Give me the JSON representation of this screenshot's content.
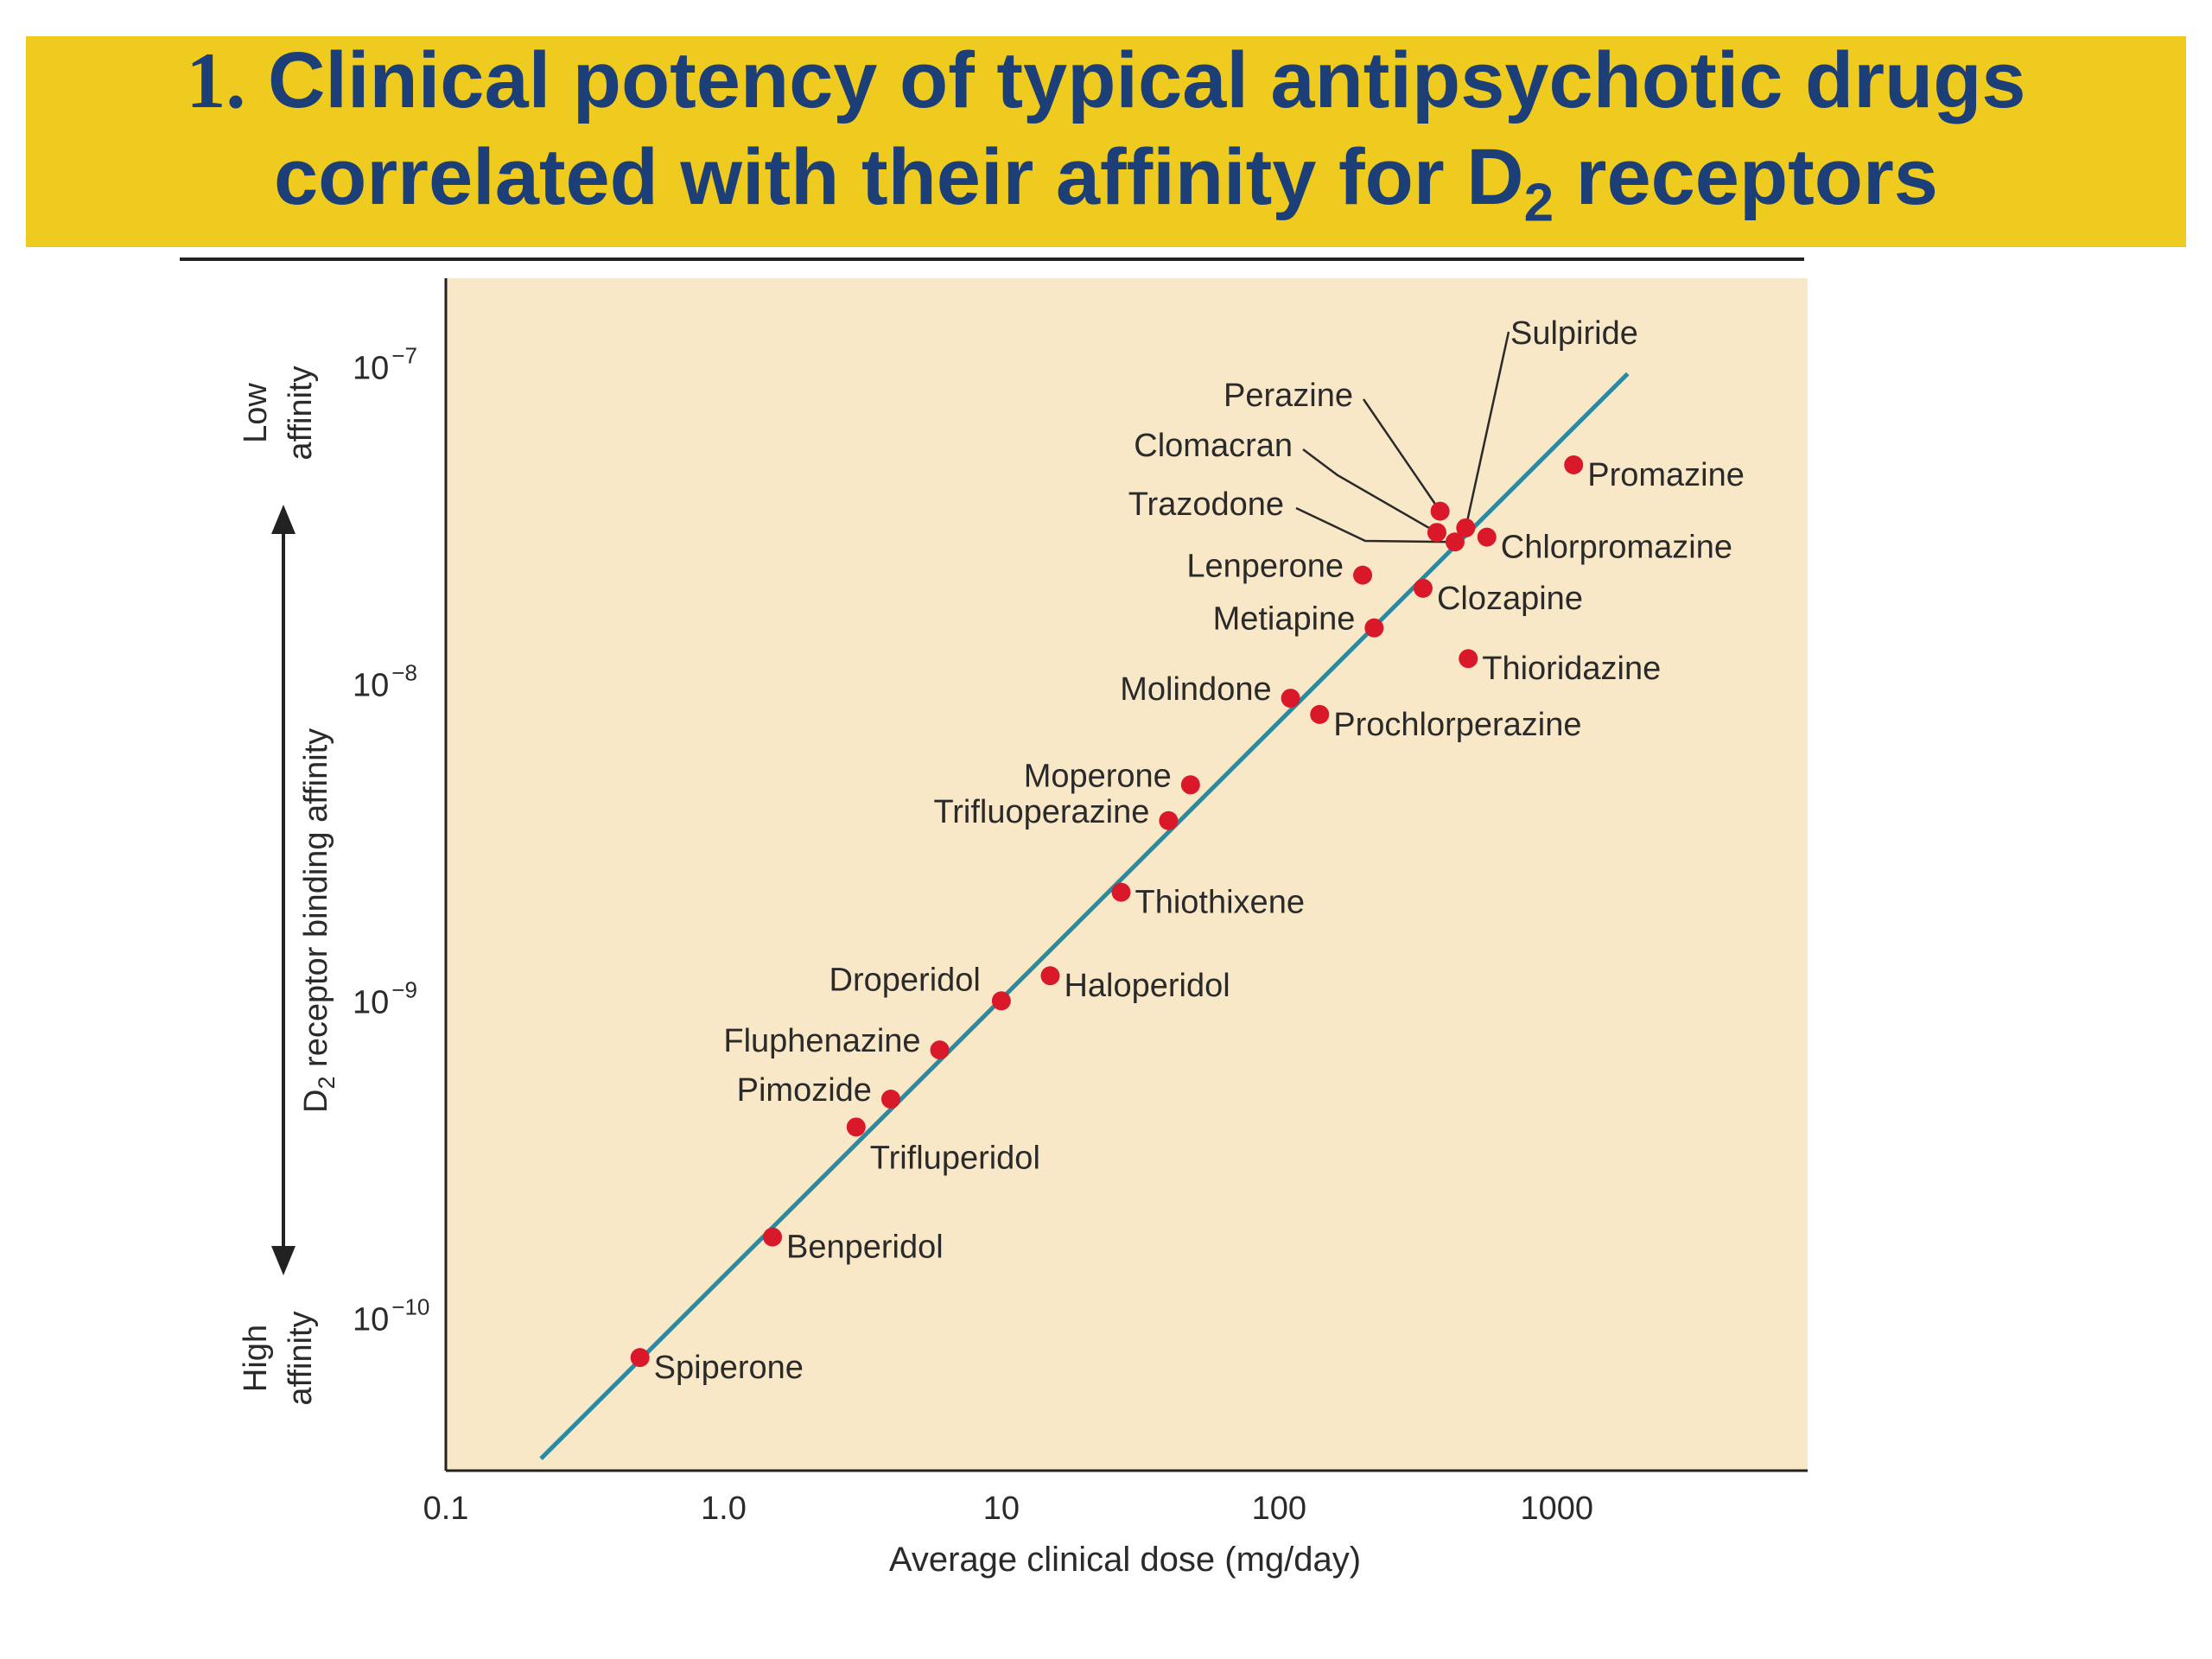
{
  "title": {
    "line1_number": "1.",
    "line1": "Clinical potency of typical antipsychotic drugs",
    "line2_prefix": "correlated with their affinity for D",
    "line2_sub": "2",
    "line2_suffix": " receptors"
  },
  "colors": {
    "banner": "#f0cb1f",
    "title_text": "#1c3f78",
    "plot_bg": "#f9e8c8",
    "trend_line": "#2a8aa0",
    "points": "#d9192a"
  },
  "chart_data": {
    "type": "scatter",
    "x_scale": "log",
    "y_scale": "log",
    "xlabel": "Average clinical dose (mg/day)",
    "ylabel_main": "D",
    "ylabel_sub": "2",
    "ylabel_rest": " receptor binding affinity",
    "y_top_label": [
      "Low",
      "affinity"
    ],
    "y_bottom_label": [
      "High",
      "affinity"
    ],
    "xlim": [
      0.1,
      8000
    ],
    "ylim": [
      3.3e-11,
      1.9e-07
    ],
    "x_ticks": [
      {
        "value": 0.1,
        "label": "0.1"
      },
      {
        "value": 1,
        "label": "1.0"
      },
      {
        "value": 10,
        "label": "10"
      },
      {
        "value": 100,
        "label": "100"
      },
      {
        "value": 1000,
        "label": "1000"
      }
    ],
    "y_ticks": [
      {
        "value": 1e-07,
        "base": "10",
        "exp": "−7"
      },
      {
        "value": 1e-08,
        "base": "10",
        "exp": "−8"
      },
      {
        "value": 1e-09,
        "base": "10",
        "exp": "−9"
      },
      {
        "value": 1e-10,
        "base": "10",
        "exp": "−10"
      }
    ],
    "trend_line": {
      "x": [
        0.22,
        1800
      ],
      "y": [
        3.6e-11,
        9.5e-08
      ]
    },
    "points": [
      {
        "name": "Spiperone",
        "x": 0.5,
        "y": 7.5e-11,
        "label_side": "right"
      },
      {
        "name": "Benperidol",
        "x": 1.5,
        "y": 1.8e-10,
        "label_side": "right"
      },
      {
        "name": "Trifluperidol",
        "x": 3.0,
        "y": 4e-10,
        "label_side": "below-right"
      },
      {
        "name": "Pimozide",
        "x": 4.0,
        "y": 4.9e-10,
        "label_side": "left"
      },
      {
        "name": "Fluphenazine",
        "x": 6.0,
        "y": 7e-10,
        "label_side": "left"
      },
      {
        "name": "Droperidol",
        "x": 10,
        "y": 1e-09,
        "label_side": "left-above"
      },
      {
        "name": "Haloperidol",
        "x": 15,
        "y": 1.2e-09,
        "label_side": "right"
      },
      {
        "name": "Thiothixene",
        "x": 27,
        "y": 2.2e-09,
        "label_side": "right"
      },
      {
        "name": "Trifluoperazine",
        "x": 40,
        "y": 3.7e-09,
        "label_side": "left"
      },
      {
        "name": "Moperone",
        "x": 48,
        "y": 4.8e-09,
        "label_side": "left"
      },
      {
        "name": "Molindone",
        "x": 110,
        "y": 9e-09,
        "label_side": "left"
      },
      {
        "name": "Prochlorperazine",
        "x": 140,
        "y": 8e-09,
        "label_side": "right"
      },
      {
        "name": "Metiapine",
        "x": 220,
        "y": 1.5e-08,
        "label_side": "left"
      },
      {
        "name": "Lenperone",
        "x": 200,
        "y": 2.2e-08,
        "label_side": "left"
      },
      {
        "name": "Clozapine",
        "x": 330,
        "y": 2e-08,
        "label_side": "right"
      },
      {
        "name": "Thioridazine",
        "x": 480,
        "y": 1.2e-08,
        "label_side": "right"
      },
      {
        "name": "Perazine",
        "x": 380,
        "y": 3.5e-08,
        "label_side": "leader"
      },
      {
        "name": "Clomacran",
        "x": 370,
        "y": 3e-08,
        "label_side": "leader"
      },
      {
        "name": "Trazodone",
        "x": 430,
        "y": 2.8e-08,
        "label_side": "leader"
      },
      {
        "name": "Sulpiride",
        "x": 470,
        "y": 3.1e-08,
        "label_side": "leader"
      },
      {
        "name": "Chlorpromazine",
        "x": 560,
        "y": 2.9e-08,
        "label_side": "right"
      },
      {
        "name": "Promazine",
        "x": 1150,
        "y": 4.9e-08,
        "label_side": "right"
      }
    ]
  }
}
